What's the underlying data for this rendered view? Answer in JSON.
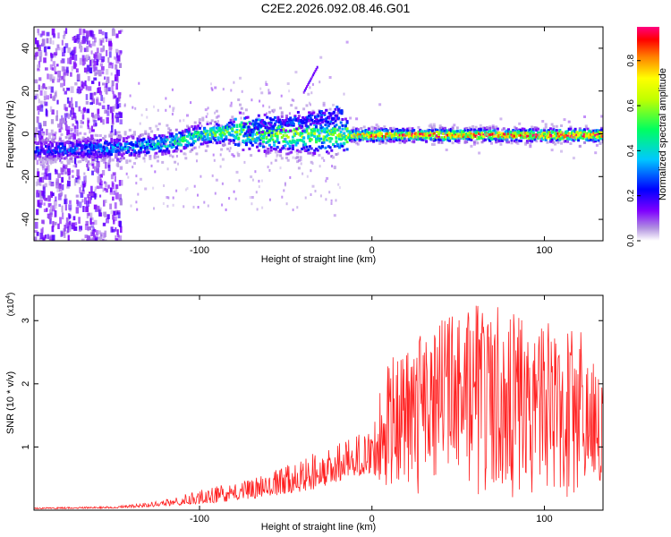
{
  "title": "C2E2.2026.092.08.46.G01",
  "chart_data": [
    {
      "type": "heatmap",
      "name": "spectrogram",
      "xlabel": "Height of straight line (km)",
      "ylabel": "Frequency (Hz)",
      "xlim": [
        -196,
        134
      ],
      "ylim": [
        -50,
        50
      ],
      "xticks": [
        -100,
        0,
        100
      ],
      "yticks": [
        -40,
        -20,
        0,
        20,
        40
      ],
      "colorbar": {
        "label": "Normalized spectral amplitude",
        "range": [
          0,
          0.95
        ],
        "ticks": [
          0.0,
          0.2,
          0.4,
          0.6,
          0.8
        ],
        "colormap": [
          "#ffffff",
          "#d8c8f0",
          "#7f00ff",
          "#0000ff",
          "#00ffff",
          "#00ff00",
          "#ffff00",
          "#ff8000",
          "#ff0000",
          "#ff0080"
        ]
      },
      "ridge": [
        {
          "x": -196,
          "f": -7,
          "amp": 0.25
        },
        {
          "x": -150,
          "f": -6,
          "amp": 0.35
        },
        {
          "x": -120,
          "f": -4,
          "amp": 0.45
        },
        {
          "x": -100,
          "f": 0,
          "amp": 0.55
        },
        {
          "x": -80,
          "f": 2,
          "amp": 0.6
        },
        {
          "x": -60,
          "f": 1,
          "amp": 0.65
        },
        {
          "x": -40,
          "f": 0,
          "amp": 0.6
        },
        {
          "x": -20,
          "f": 0,
          "amp": 0.6
        },
        {
          "x": 0,
          "f": 0,
          "amp": 0.85
        },
        {
          "x": 50,
          "f": 0,
          "amp": 0.9
        },
        {
          "x": 100,
          "f": 0,
          "amp": 0.9
        },
        {
          "x": 134,
          "f": 0,
          "amp": 0.95
        }
      ]
    },
    {
      "type": "line",
      "name": "snr",
      "xlabel": "Height of straight line (km)",
      "ylabel": "SNR (10 * v/v)",
      "scale_label": "(x10",
      "scale_exp": "4",
      "scale_close": ")",
      "xlim": [
        -196,
        134
      ],
      "ylim": [
        0,
        3.4
      ],
      "xticks": [
        -100,
        0,
        100
      ],
      "yticks": [
        1,
        2,
        3
      ],
      "color": "#ff2020",
      "envelope": [
        {
          "x": -196,
          "base": 0.02,
          "peak": 0.04
        },
        {
          "x": -150,
          "base": 0.03,
          "peak": 0.06
        },
        {
          "x": -130,
          "base": 0.05,
          "peak": 0.12
        },
        {
          "x": -110,
          "base": 0.08,
          "peak": 0.25
        },
        {
          "x": -90,
          "base": 0.12,
          "peak": 0.38
        },
        {
          "x": -70,
          "base": 0.18,
          "peak": 0.5
        },
        {
          "x": -50,
          "base": 0.25,
          "peak": 0.7
        },
        {
          "x": -30,
          "base": 0.35,
          "peak": 0.95
        },
        {
          "x": -20,
          "base": 0.45,
          "peak": 1.1
        },
        {
          "x": 0,
          "base": 0.6,
          "peak": 1.3
        },
        {
          "x": 10,
          "base": 0.3,
          "peak": 2.5
        },
        {
          "x": 40,
          "base": 0.2,
          "peak": 3.0
        },
        {
          "x": 65,
          "base": 0.2,
          "peak": 3.35
        },
        {
          "x": 90,
          "base": 0.2,
          "peak": 3.0
        },
        {
          "x": 120,
          "base": 0.2,
          "peak": 2.9
        },
        {
          "x": 134,
          "base": 0.3,
          "peak": 2.2
        }
      ]
    }
  ]
}
